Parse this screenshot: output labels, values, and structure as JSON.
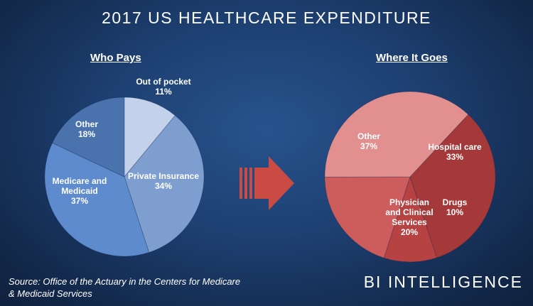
{
  "title": "2017 US HEALTHCARE EXPENDITURE",
  "source": "Source: Office of the Actuary in the Centers for Medicare & Medicaid Services",
  "brand": "BI INTELLIGENCE",
  "colors": {
    "blue_series": "#5b8ed0",
    "red_series": "#b84442"
  },
  "icons": {
    "arrow": "right-arrow-icon"
  },
  "chart_data": [
    {
      "type": "pie",
      "title": "Who Pays",
      "slices": [
        {
          "label": [
            "Out of pocket",
            "11%"
          ],
          "value": 11,
          "color": "#c4d1ea"
        },
        {
          "label": [
            "Private Insurance",
            "34%"
          ],
          "value": 34,
          "color": "#7f9ed0"
        },
        {
          "label": [
            "Medicare and",
            "Medicaid",
            "37%"
          ],
          "value": 37,
          "color": "#5e8bcd"
        },
        {
          "label": [
            "Other",
            "18%"
          ],
          "value": 18,
          "color": "#4a72ad"
        }
      ]
    },
    {
      "type": "pie",
      "title": "Where It Goes",
      "slices": [
        {
          "label": [
            "Hospital care",
            "33%"
          ],
          "value": 33,
          "color": "#a53939"
        },
        {
          "label": [
            "Drugs",
            "10%"
          ],
          "value": 10,
          "color": "#b74242"
        },
        {
          "label": [
            "Physician",
            "and Clinical",
            "Services",
            "20%"
          ],
          "value": 20,
          "color": "#cd5c5c"
        },
        {
          "label": [
            "Other",
            "37%"
          ],
          "value": 37,
          "color": "#e18f8f"
        }
      ]
    }
  ]
}
